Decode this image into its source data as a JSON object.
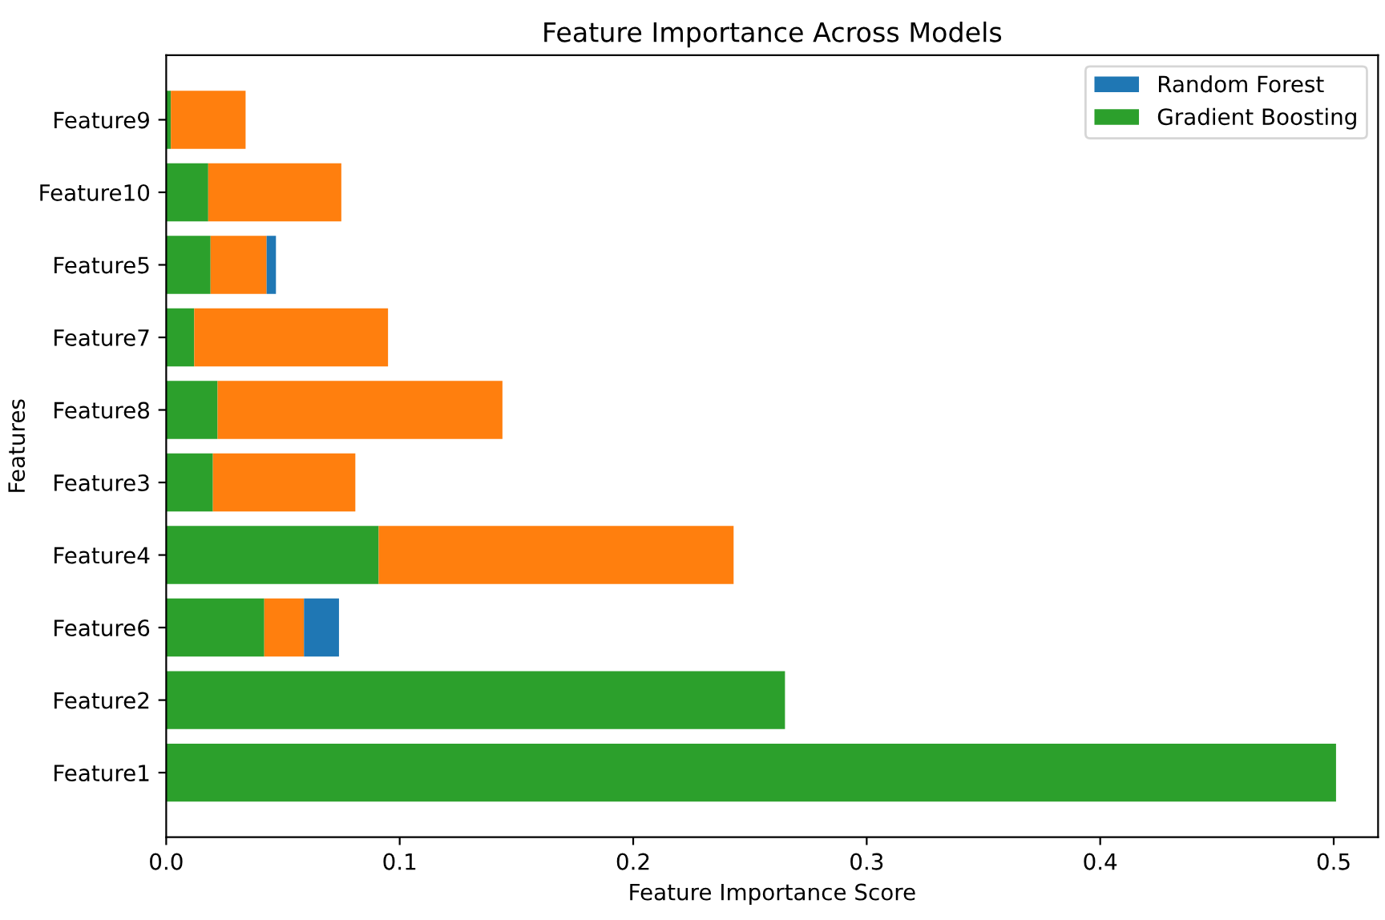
{
  "chart_data": {
    "type": "bar",
    "orientation": "horizontal",
    "stacked": true,
    "title": "Feature Importance Across Models",
    "xlabel": "Feature Importance Score",
    "ylabel": "Features",
    "categories": [
      "Feature9",
      "Feature10",
      "Feature5",
      "Feature7",
      "Feature8",
      "Feature3",
      "Feature4",
      "Feature6",
      "Feature2",
      "Feature1"
    ],
    "series": [
      {
        "name": "Gradient Boosting",
        "color": "#2ca02c",
        "values": [
          0.002,
          0.018,
          0.019,
          0.012,
          0.022,
          0.02,
          0.091,
          0.042,
          0.265,
          0.501
        ]
      },
      {
        "color": "#ff7f0e",
        "values": [
          0.032,
          0.057,
          0.024,
          0.083,
          0.122,
          0.061,
          0.152,
          0.017,
          null,
          null
        ]
      },
      {
        "name": "Random Forest",
        "color": "#1f77b4",
        "values": [
          null,
          null,
          0.004,
          null,
          null,
          null,
          null,
          0.015,
          null,
          null
        ]
      }
    ],
    "xlim": [
      0,
      0.519
    ],
    "xticks": [
      {
        "value": 0,
        "label": "0.0"
      },
      0.1,
      0.2,
      0.3,
      0.4,
      0.5
    ],
    "legend": "top right",
    "grid": false
  }
}
